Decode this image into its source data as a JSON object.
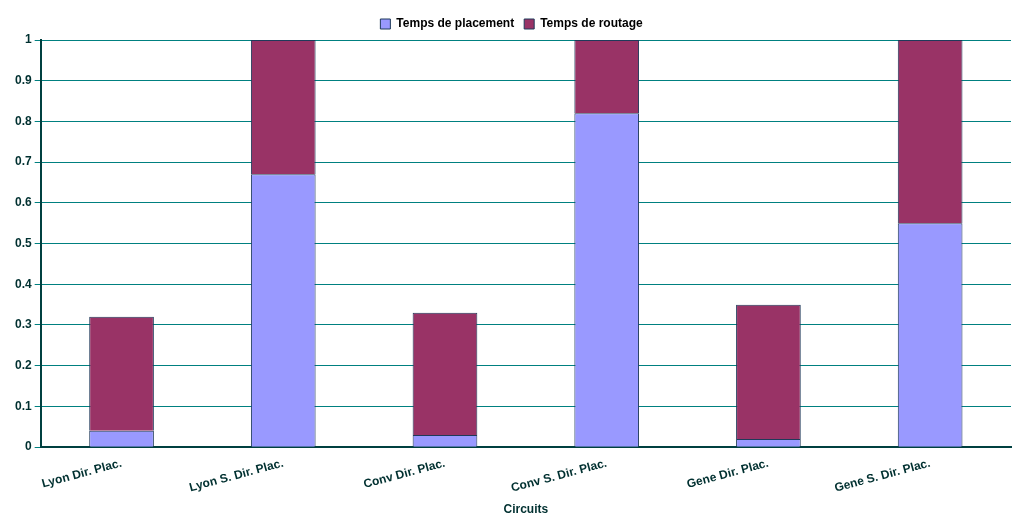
{
  "chart_data": {
    "type": "bar",
    "stacked": true,
    "xlabel": "Circuits",
    "categories": [
      "Lyon Dir. Plac.",
      "Lyon S. Dir. Plac.",
      "Conv Dir. Plac.",
      "Conv S. Dir. Plac.",
      "Gene Dir. Plac.",
      "Gene S. Dir. Plac."
    ],
    "series": [
      {
        "name": "Temps de placement",
        "color": "#9999ff",
        "values": [
          0.04,
          0.67,
          0.03,
          0.82,
          0.02,
          0.55
        ]
      },
      {
        "name": "Temps de routage",
        "color": "#993366",
        "values": [
          0.28,
          0.33,
          0.3,
          0.18,
          0.33,
          0.45
        ]
      }
    ],
    "ylim": [
      0,
      1
    ],
    "yticks": [
      0,
      0.1,
      0.2,
      0.3,
      0.4,
      0.5,
      0.6,
      0.7,
      0.8,
      0.9,
      1
    ],
    "grid": "y",
    "legend": "top"
  }
}
